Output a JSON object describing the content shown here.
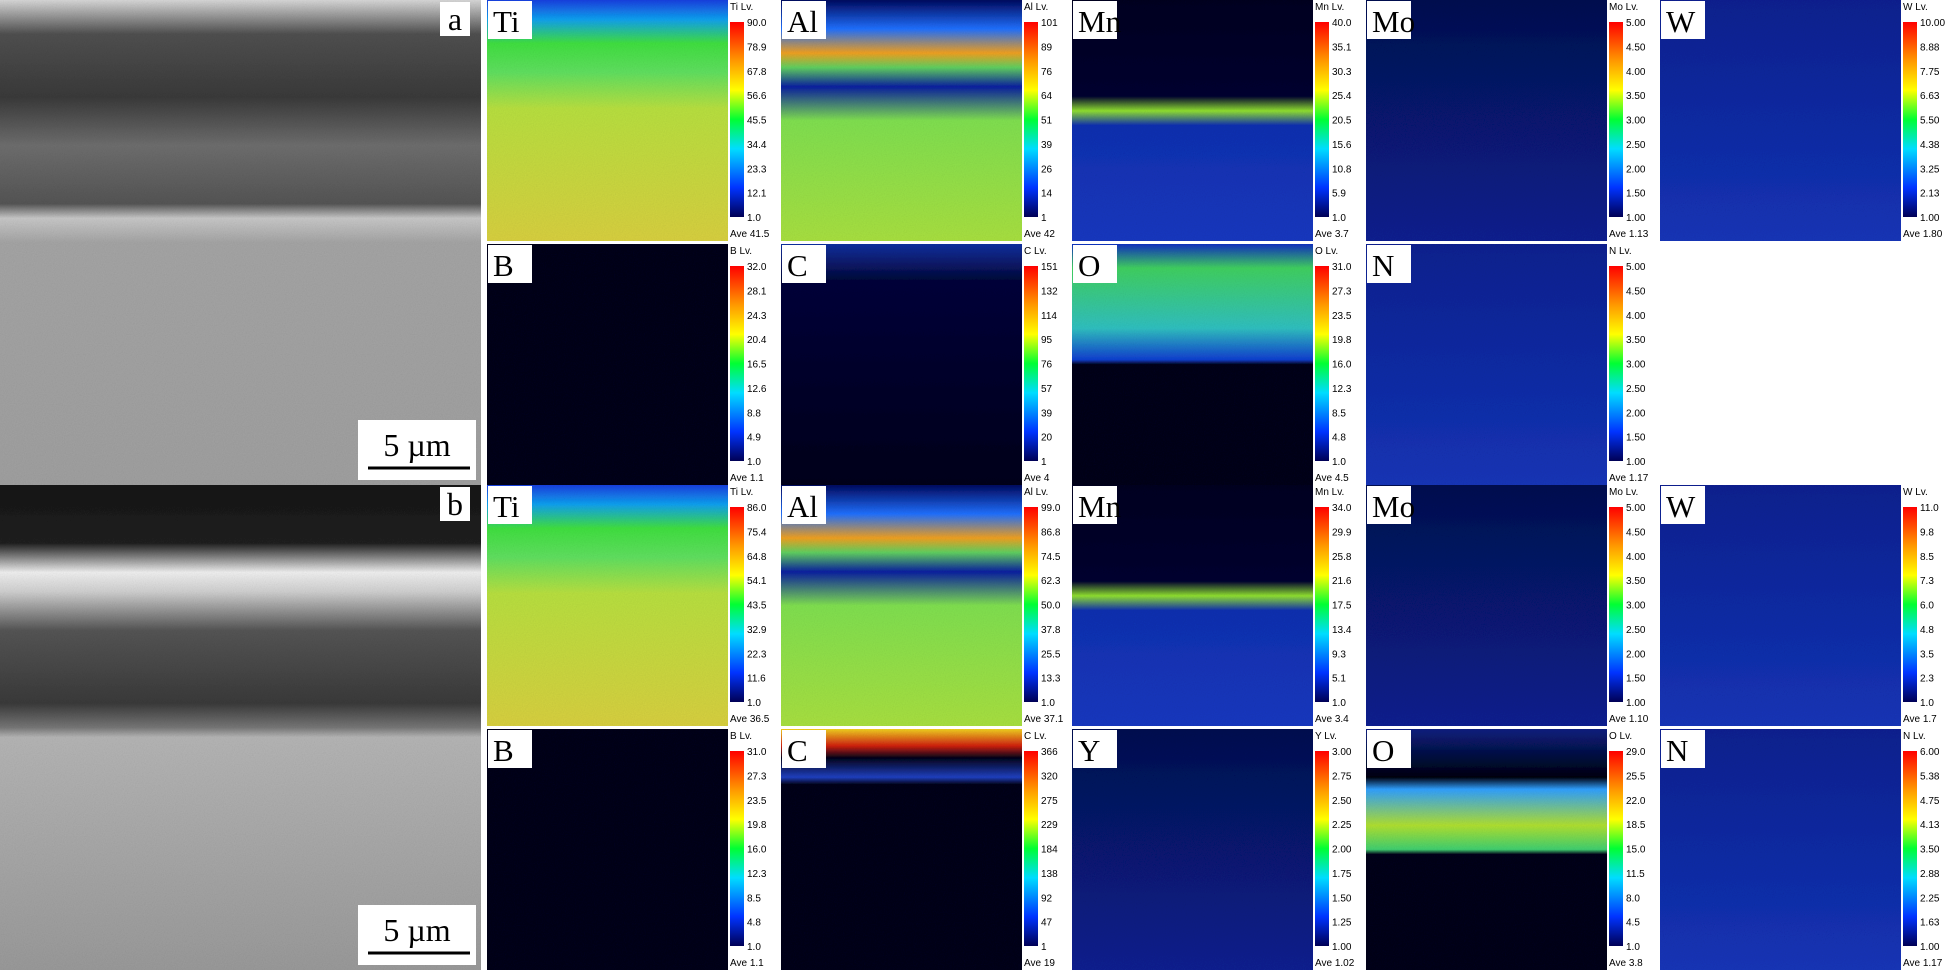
{
  "panels": [
    {
      "label": "a",
      "scale_bar": "5 µm",
      "rows": [
        [
          {
            "element": "Ti",
            "level": "Ti Lv.",
            "ticks": [
              "90.0",
              "78.9",
              "67.8",
              "56.6",
              "45.5",
              "34.4",
              "23.3",
              "12.1",
              "1.0"
            ],
            "average": "Ave 41.5"
          },
          {
            "element": "Al",
            "level": "Al Lv.",
            "ticks": [
              "101",
              "89",
              "76",
              "64",
              "51",
              "39",
              "26",
              "14",
              "1"
            ],
            "average": "Ave 42"
          },
          {
            "element": "Mn",
            "level": "Mn Lv.",
            "ticks": [
              "40.0",
              "35.1",
              "30.3",
              "25.4",
              "20.5",
              "15.6",
              "10.8",
              "5.9",
              "1.0"
            ],
            "average": "Ave 3.7"
          },
          {
            "element": "Mo",
            "level": "Mo Lv.",
            "ticks": [
              "5.00",
              "4.50",
              "4.00",
              "3.50",
              "3.00",
              "2.50",
              "2.00",
              "1.50",
              "1.00"
            ],
            "average": "Ave 1.13"
          },
          {
            "element": "W",
            "level": "W Lv.",
            "ticks": [
              "10.00",
              "8.88",
              "7.75",
              "6.63",
              "5.50",
              "4.38",
              "3.25",
              "2.13",
              "1.00"
            ],
            "average": "Ave 1.80"
          }
        ],
        [
          {
            "element": "B",
            "level": "B Lv.",
            "ticks": [
              "32.0",
              "28.1",
              "24.3",
              "20.4",
              "16.5",
              "12.6",
              "8.8",
              "4.9",
              "1.0"
            ],
            "average": "Ave 1.1"
          },
          {
            "element": "C",
            "level": "C Lv.",
            "ticks": [
              "151",
              "132",
              "114",
              "95",
              "76",
              "57",
              "39",
              "20",
              "1"
            ],
            "average": "Ave 4"
          },
          {
            "element": "O",
            "level": "O Lv.",
            "ticks": [
              "31.0",
              "27.3",
              "23.5",
              "19.8",
              "16.0",
              "12.3",
              "8.5",
              "4.8",
              "1.0"
            ],
            "average": "Ave 4.5"
          },
          {
            "element": "N",
            "level": "N Lv.",
            "ticks": [
              "5.00",
              "4.50",
              "4.00",
              "3.50",
              "3.00",
              "2.50",
              "2.00",
              "1.50",
              "1.00"
            ],
            "average": "Ave 1.17"
          }
        ]
      ]
    },
    {
      "label": "b",
      "scale_bar": "5 µm",
      "rows": [
        [
          {
            "element": "Ti",
            "level": "Ti Lv.",
            "ticks": [
              "86.0",
              "75.4",
              "64.8",
              "54.1",
              "43.5",
              "32.9",
              "22.3",
              "11.6",
              "1.0"
            ],
            "average": "Ave 36.5"
          },
          {
            "element": "Al",
            "level": "Al Lv.",
            "ticks": [
              "99.0",
              "86.8",
              "74.5",
              "62.3",
              "50.0",
              "37.8",
              "25.5",
              "13.3",
              "1.0"
            ],
            "average": "Ave 37.1"
          },
          {
            "element": "Mn",
            "level": "Mn Lv.",
            "ticks": [
              "34.0",
              "29.9",
              "25.8",
              "21.6",
              "17.5",
              "13.4",
              "9.3",
              "5.1",
              "1.0"
            ],
            "average": "Ave 3.4"
          },
          {
            "element": "Mo",
            "level": "Mo Lv.",
            "ticks": [
              "5.00",
              "4.50",
              "4.00",
              "3.50",
              "3.00",
              "2.50",
              "2.00",
              "1.50",
              "1.00"
            ],
            "average": "Ave 1.10"
          },
          {
            "element": "W",
            "level": "W Lv.",
            "ticks": [
              "11.0",
              "9.8",
              "8.5",
              "7.3",
              "6.0",
              "4.8",
              "3.5",
              "2.3",
              "1.0"
            ],
            "average": "Ave 1.7"
          }
        ],
        [
          {
            "element": "B",
            "level": "B Lv.",
            "ticks": [
              "31.0",
              "27.3",
              "23.5",
              "19.8",
              "16.0",
              "12.3",
              "8.5",
              "4.8",
              "1.0"
            ],
            "average": "Ave 1.1"
          },
          {
            "element": "C",
            "level": "C Lv.",
            "ticks": [
              "366",
              "320",
              "275",
              "229",
              "184",
              "138",
              "92",
              "47",
              "1"
            ],
            "average": "Ave 19"
          },
          {
            "element": "Y",
            "level": "Y Lv.",
            "ticks": [
              "3.00",
              "2.75",
              "2.50",
              "2.25",
              "2.00",
              "1.75",
              "1.50",
              "1.25",
              "1.00"
            ],
            "average": "Ave 1.02"
          },
          {
            "element": "O",
            "level": "O Lv.",
            "ticks": [
              "29.0",
              "25.5",
              "22.0",
              "18.5",
              "15.0",
              "11.5",
              "8.0",
              "4.5",
              "1.0"
            ],
            "average": "Ave 3.8"
          },
          {
            "element": "N",
            "level": "N Lv.",
            "ticks": [
              "6.00",
              "5.38",
              "4.75",
              "4.13",
              "3.50",
              "2.88",
              "2.25",
              "1.63",
              "1.00"
            ],
            "average": "Ave 1.17"
          }
        ]
      ]
    }
  ]
}
